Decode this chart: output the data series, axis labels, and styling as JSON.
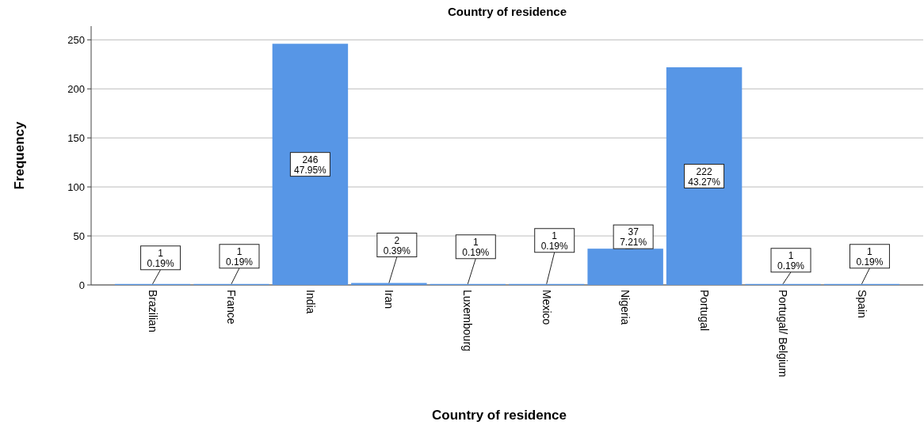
{
  "chart_data": {
    "type": "bar",
    "title": "Country of residence",
    "xlabel": "Country of residence",
    "ylabel": "Frequency",
    "categories": [
      "Brazilian",
      "France",
      "India",
      "Iran",
      "Luxembourg",
      "Mexico",
      "Nigeria",
      "Portugal",
      "Portugal/ Belgium",
      "Spain"
    ],
    "values": [
      1,
      1,
      246,
      2,
      1,
      1,
      37,
      222,
      1,
      1
    ],
    "value_labels": [
      "1\n0.19%",
      "1\n0.19%",
      "246\n47.95%",
      "2\n0.39%",
      "1\n0.19%",
      "1\n0.19%",
      "37\n7.21%",
      "222\n43.27%",
      "1\n0.19%",
      "1\n0.19%"
    ],
    "color": "#5796e6",
    "ylim": [
      0,
      264
    ],
    "yticks": [
      0,
      50,
      100,
      150,
      200,
      250
    ],
    "grid": "y"
  }
}
